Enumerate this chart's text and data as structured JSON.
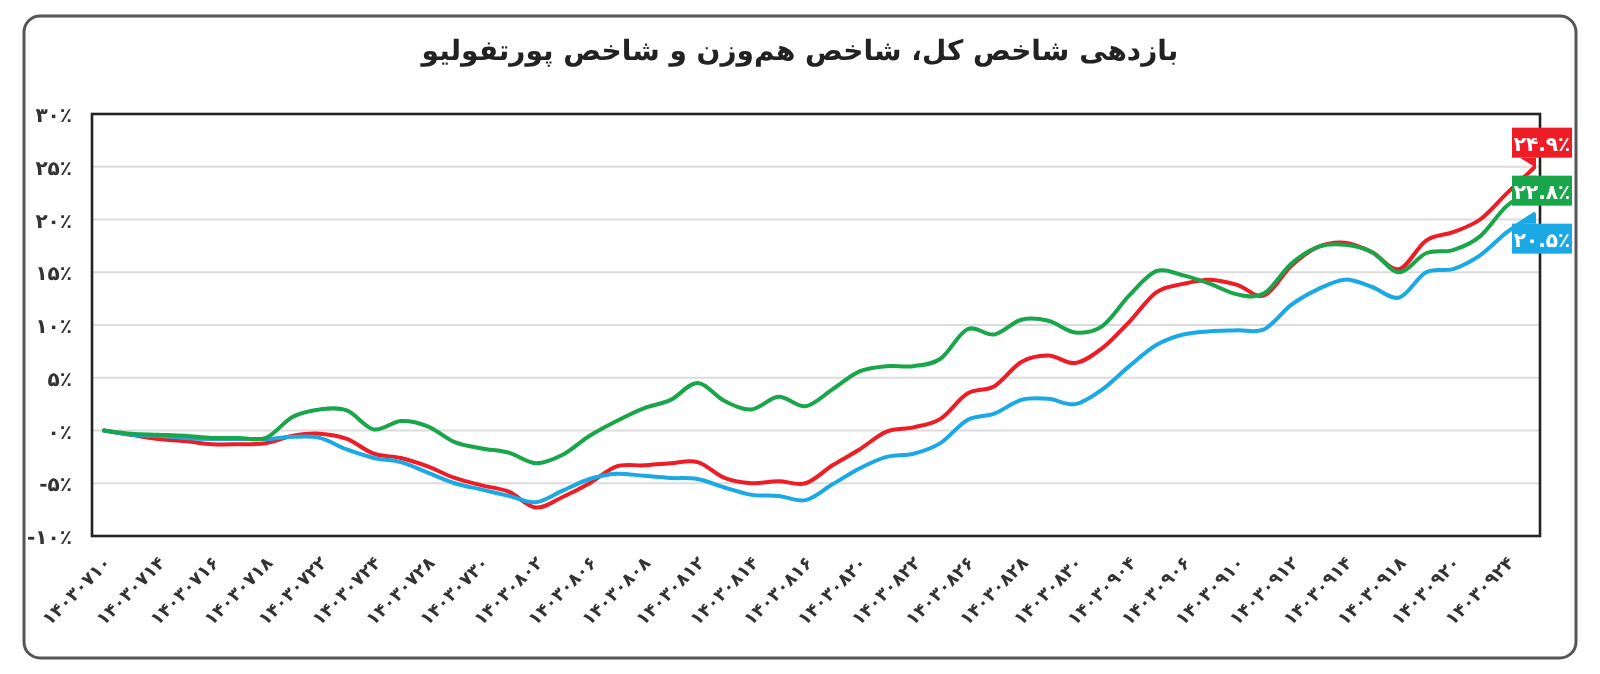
{
  "chart_data": {
    "type": "line",
    "title": "بازدهی شاخص کل، شاخص هم‌وزن و شاخص پورتفولیو",
    "categories": [
      "۱۴۰۳۰۷۱۰",
      null,
      "۱۴۰۳۰۷۱۴",
      null,
      "۱۴۰۳۰۷۱۶",
      null,
      "۱۴۰۳۰۷۱۸",
      null,
      "۱۴۰۳۰۷۲۲",
      null,
      "۱۴۰۳۰۷۲۴",
      null,
      "۱۴۰۳۰۷۲۸",
      null,
      "۱۴۰۳۰۷۳۰",
      null,
      "۱۴۰۳۰۸۰۲",
      null,
      "۱۴۰۳۰۸۰۶",
      null,
      "۱۴۰۳۰۸۰۸",
      null,
      "۱۴۰۳۰۸۱۲",
      null,
      "۱۴۰۳۰۸۱۴",
      null,
      "۱۴۰۳۰۸۱۶",
      null,
      "۱۴۰۳۰۸۲۰",
      null,
      "۱۴۰۳۰۸۲۲",
      null,
      "۱۴۰۳۰۸۲۶",
      null,
      "۱۴۰۳۰۸۲۸",
      null,
      "۱۴۰۳۰۸۳۰",
      null,
      "۱۴۰۳۰۹۰۴",
      null,
      "۱۴۰۳۰۹۰۶",
      null,
      "۱۴۰۳۰۹۱۰",
      null,
      "۱۴۰۳۰۹۱۲",
      null,
      "۱۴۰۳۰۹۱۴",
      null,
      "۱۴۰۳۰۹۱۸",
      null,
      "۱۴۰۳۰۹۲۰",
      null,
      "۱۴۰۳۰۹۲۴",
      null
    ],
    "series": [
      {
        "color": "#ee1c25",
        "values": [
          0,
          -0.4,
          -0.8,
          -1.0,
          -1.3,
          -1.3,
          -1.2,
          -0.5,
          -0.3,
          -0.8,
          -2.2,
          -2.6,
          -3.4,
          -4.5,
          -5.2,
          -5.8,
          -7.3,
          -6.3,
          -5.0,
          -3.4,
          -3.3,
          -3.1,
          -3.0,
          -4.5,
          -5.0,
          -4.8,
          -5.0,
          -3.3,
          -1.8,
          -0.1,
          0.3,
          1.1,
          3.5,
          4.2,
          6.5,
          7.1,
          6.4,
          7.8,
          10.3,
          13.1,
          13.9,
          14.3,
          13.8,
          12.8,
          15.6,
          17.4,
          17.8,
          16.9,
          15.3,
          18.0,
          18.8,
          20.0,
          22.5,
          24.9
        ],
        "value_labels": [
          null,
          null,
          null,
          null,
          null,
          null,
          null,
          null,
          null,
          null,
          null,
          null,
          null,
          null,
          null,
          null,
          null,
          null,
          null,
          null,
          null,
          null,
          null,
          null,
          null,
          null,
          null,
          null,
          null,
          null,
          null,
          null,
          null,
          null,
          null,
          null,
          null,
          null,
          null,
          null,
          null,
          null,
          null,
          null,
          null,
          null,
          null,
          null,
          null,
          null,
          null,
          null,
          null,
          "۲۴.۹٪"
        ]
      },
      {
        "color": "#1ba9e6",
        "values": [
          0,
          -0.4,
          -0.5,
          -0.7,
          -0.8,
          -0.8,
          -0.8,
          -0.6,
          -0.7,
          -1.8,
          -2.6,
          -3.0,
          -4.0,
          -5.0,
          -5.6,
          -6.2,
          -6.8,
          -5.7,
          -4.6,
          -4.1,
          -4.3,
          -4.5,
          -4.6,
          -5.4,
          -6.1,
          -6.2,
          -6.6,
          -5.1,
          -3.6,
          -2.5,
          -2.2,
          -1.2,
          1.0,
          1.6,
          2.9,
          3.0,
          2.5,
          3.9,
          6.1,
          8.1,
          9.1,
          9.4,
          9.5,
          9.6,
          11.9,
          13.4,
          14.3,
          13.6,
          12.6,
          15.0,
          15.3,
          16.6,
          18.8,
          20.5
        ],
        "value_labels": [
          null,
          null,
          null,
          null,
          null,
          null,
          null,
          null,
          null,
          null,
          null,
          null,
          null,
          null,
          null,
          null,
          null,
          null,
          null,
          null,
          null,
          null,
          null,
          null,
          null,
          null,
          null,
          null,
          null,
          null,
          null,
          null,
          null,
          null,
          null,
          null,
          null,
          null,
          null,
          null,
          null,
          null,
          null,
          null,
          null,
          null,
          null,
          null,
          null,
          null,
          null,
          null,
          null,
          "۲۰.۵٪"
        ]
      },
      {
        "color": "#19a64b",
        "values": [
          0,
          -0.3,
          -0.4,
          -0.5,
          -0.7,
          -0.7,
          -0.7,
          1.3,
          2.0,
          1.9,
          0.1,
          0.9,
          0.4,
          -1.1,
          -1.7,
          -2.1,
          -3.1,
          -2.3,
          -0.5,
          0.9,
          2.1,
          2.9,
          4.5,
          2.8,
          2.0,
          3.2,
          2.3,
          3.9,
          5.6,
          6.1,
          6.1,
          6.8,
          9.6,
          9.1,
          10.5,
          10.4,
          9.3,
          9.9,
          12.8,
          15.1,
          14.7,
          13.9,
          12.9,
          13.0,
          15.8,
          17.4,
          17.6,
          16.9,
          15.0,
          16.8,
          17.1,
          18.4,
          21.3,
          22.8
        ],
        "value_labels": [
          null,
          null,
          null,
          null,
          null,
          null,
          null,
          null,
          null,
          null,
          null,
          null,
          null,
          null,
          null,
          null,
          null,
          null,
          null,
          null,
          null,
          null,
          null,
          null,
          null,
          null,
          null,
          null,
          null,
          null,
          null,
          null,
          null,
          null,
          null,
          null,
          null,
          null,
          null,
          null,
          null,
          null,
          null,
          null,
          null,
          null,
          null,
          null,
          null,
          null,
          null,
          null,
          null,
          "۲۲.۸٪"
        ]
      }
    ],
    "ylim": [
      -10,
      30
    ],
    "yticks": [
      {
        "value": -10,
        "label": "-۱۰٪"
      },
      {
        "value": -5,
        "label": "-۵٪"
      },
      {
        "value": 0,
        "label": "۰٪"
      },
      {
        "value": 5,
        "label": "۵٪"
      },
      {
        "value": 10,
        "label": "۱۰٪"
      },
      {
        "value": 15,
        "label": "۱۵٪"
      },
      {
        "value": 20,
        "label": "۲۰٪"
      },
      {
        "value": 25,
        "label": "۲۵٪"
      },
      {
        "value": 30,
        "label": "۳۰٪"
      }
    ],
    "grid": "y",
    "marker": "none",
    "line_style": "solid"
  }
}
